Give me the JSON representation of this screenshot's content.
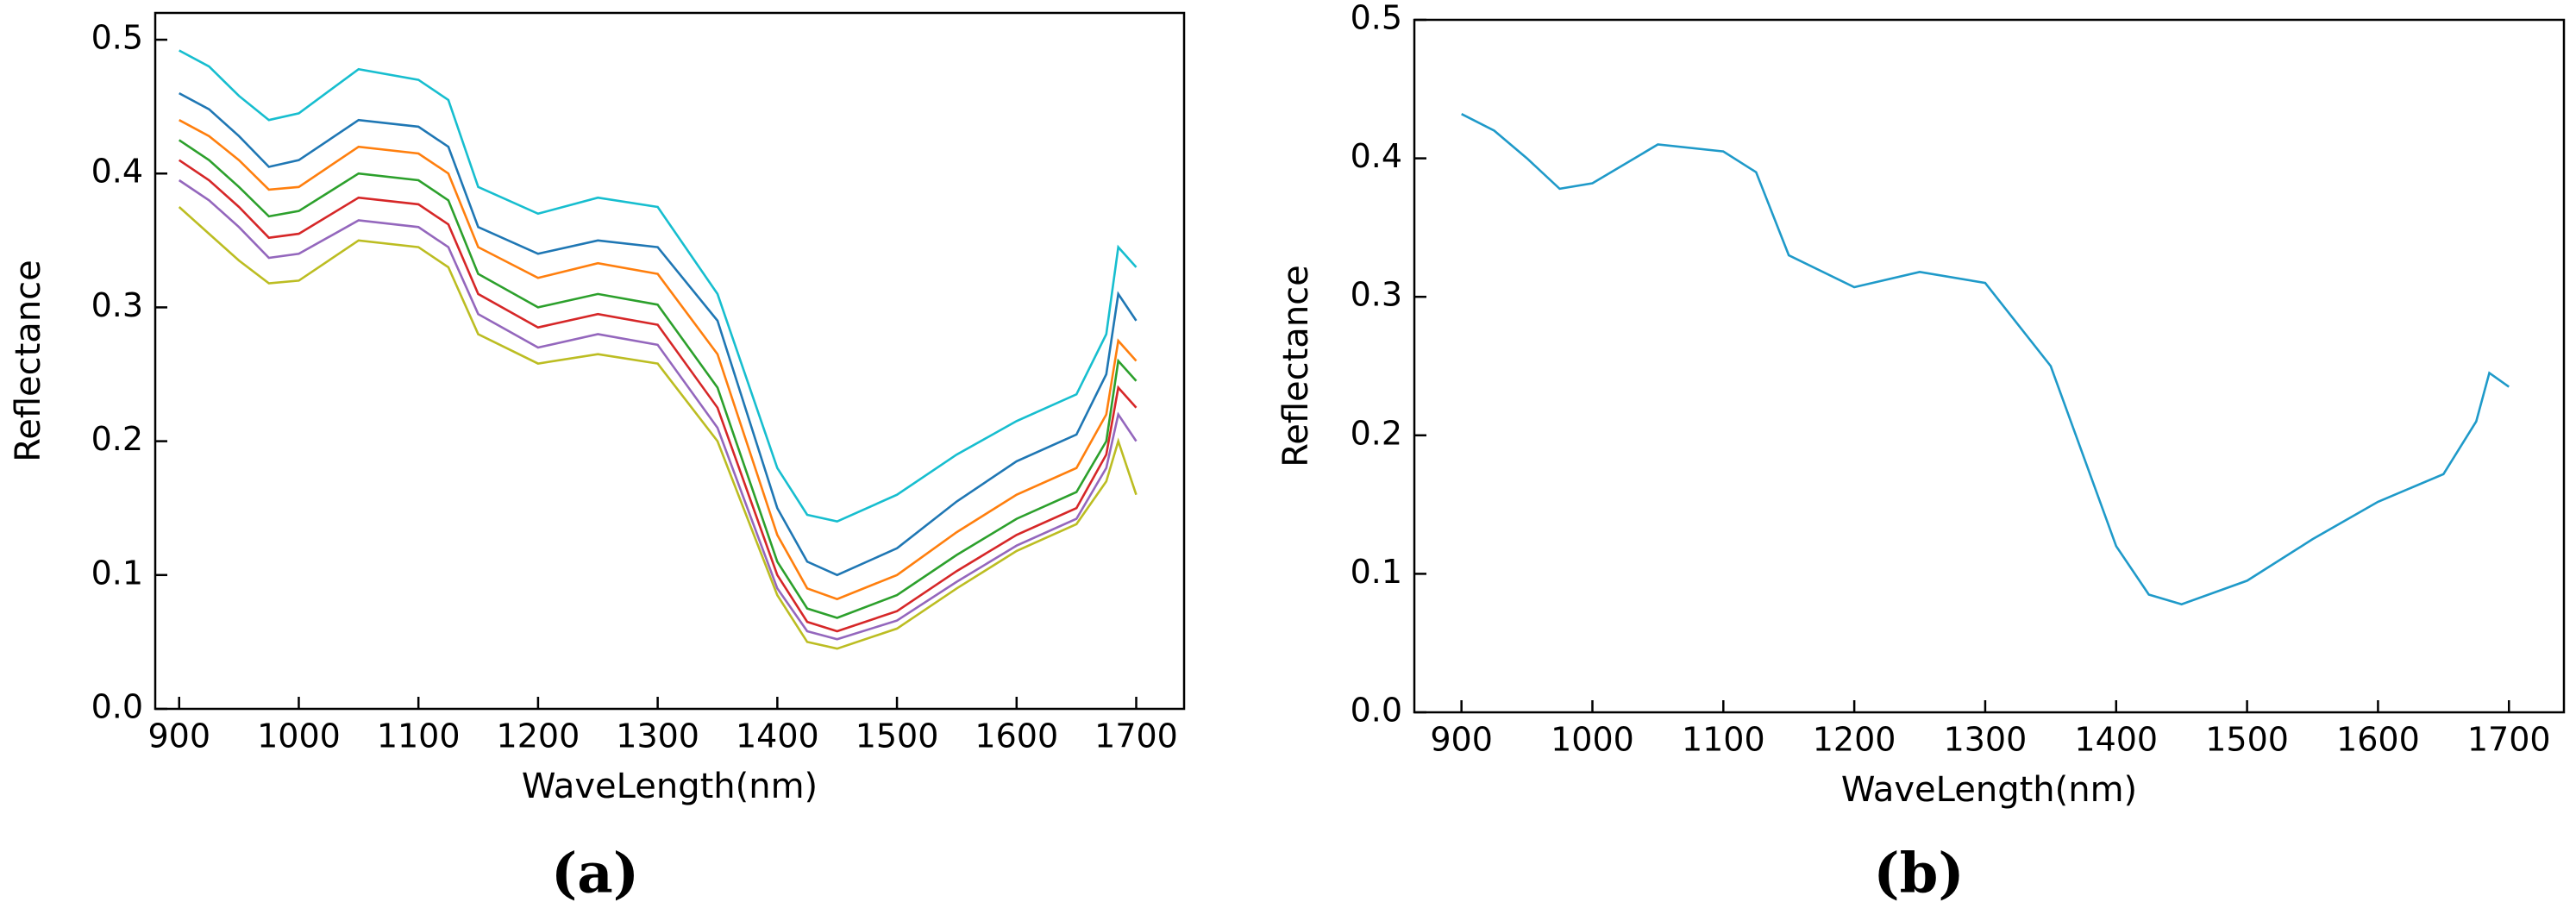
{
  "chart_data": [
    {
      "type": "line",
      "caption": "(a)",
      "xlabel": "WaveLength(nm)",
      "ylabel": "Reflectance",
      "x": [
        900,
        925,
        950,
        975,
        1000,
        1050,
        1100,
        1125,
        1150,
        1200,
        1250,
        1300,
        1350,
        1400,
        1425,
        1450,
        1500,
        1550,
        1600,
        1650,
        1675,
        1685,
        1700
      ],
      "xlim": [
        880,
        1740
      ],
      "ylim": [
        0,
        0.52
      ],
      "xticks": [
        900,
        1000,
        1100,
        1200,
        1300,
        1400,
        1500,
        1600,
        1700
      ],
      "yticks": [
        {
          "value": 0,
          "label": "0.0"
        },
        0.1,
        0.2,
        0.3,
        0.4,
        0.5
      ],
      "series": [
        {
          "color": "#17becf",
          "values": [
            0.492,
            0.48,
            0.458,
            0.44,
            0.445,
            0.478,
            0.47,
            0.455,
            0.39,
            0.37,
            0.382,
            0.375,
            0.31,
            0.18,
            0.145,
            0.14,
            0.16,
            0.19,
            0.215,
            0.235,
            0.28,
            0.345,
            0.33
          ]
        },
        {
          "color": "#1f77b4",
          "values": [
            0.46,
            0.448,
            0.428,
            0.405,
            0.41,
            0.44,
            0.435,
            0.42,
            0.36,
            0.34,
            0.35,
            0.345,
            0.29,
            0.15,
            0.11,
            0.1,
            0.12,
            0.155,
            0.185,
            0.205,
            0.25,
            0.31,
            0.29
          ]
        },
        {
          "color": "#ff7f0e",
          "values": [
            0.44,
            0.428,
            0.41,
            0.388,
            0.39,
            0.42,
            0.415,
            0.4,
            0.345,
            0.322,
            0.333,
            0.325,
            0.265,
            0.13,
            0.09,
            0.082,
            0.1,
            0.132,
            0.16,
            0.18,
            0.22,
            0.275,
            0.26
          ]
        },
        {
          "color": "#2ca02c",
          "values": [
            0.425,
            0.41,
            0.39,
            0.368,
            0.372,
            0.4,
            0.395,
            0.38,
            0.325,
            0.3,
            0.31,
            0.302,
            0.24,
            0.11,
            0.075,
            0.068,
            0.085,
            0.115,
            0.142,
            0.162,
            0.2,
            0.26,
            0.245
          ]
        },
        {
          "color": "#d62728",
          "values": [
            0.41,
            0.395,
            0.375,
            0.352,
            0.355,
            0.382,
            0.377,
            0.362,
            0.31,
            0.285,
            0.295,
            0.287,
            0.225,
            0.1,
            0.065,
            0.058,
            0.073,
            0.103,
            0.13,
            0.15,
            0.19,
            0.24,
            0.225
          ]
        },
        {
          "color": "#9467bd",
          "values": [
            0.395,
            0.38,
            0.36,
            0.337,
            0.34,
            0.365,
            0.36,
            0.345,
            0.295,
            0.27,
            0.28,
            0.272,
            0.21,
            0.09,
            0.058,
            0.052,
            0.066,
            0.095,
            0.122,
            0.142,
            0.18,
            0.22,
            0.2
          ]
        },
        {
          "color": "#bcbd22",
          "values": [
            0.375,
            0.355,
            0.335,
            0.318,
            0.32,
            0.35,
            0.345,
            0.33,
            0.28,
            0.258,
            0.265,
            0.258,
            0.2,
            0.085,
            0.05,
            0.045,
            0.06,
            0.09,
            0.118,
            0.138,
            0.17,
            0.2,
            0.16
          ]
        }
      ]
    },
    {
      "type": "line",
      "caption": "(b)",
      "xlabel": "WaveLength(nm)",
      "ylabel": "Reflectance",
      "x": [
        900,
        925,
        950,
        975,
        1000,
        1050,
        1100,
        1125,
        1150,
        1200,
        1250,
        1300,
        1350,
        1400,
        1425,
        1450,
        1500,
        1550,
        1600,
        1650,
        1675,
        1685,
        1700
      ],
      "xlim": [
        864,
        1742
      ],
      "ylim": [
        0,
        0.5
      ],
      "xticks": [
        900,
        1000,
        1100,
        1200,
        1300,
        1400,
        1500,
        1600,
        1700
      ],
      "yticks": [
        {
          "value": 0,
          "label": "0.0"
        },
        0.1,
        0.2,
        0.3,
        0.4,
        0.5
      ],
      "series": [
        {
          "color": "#1f9ac9",
          "values": [
            0.432,
            0.42,
            0.4,
            0.378,
            0.382,
            0.41,
            0.405,
            0.39,
            0.33,
            0.307,
            0.318,
            0.31,
            0.25,
            0.12,
            0.085,
            0.078,
            0.095,
            0.125,
            0.152,
            0.172,
            0.21,
            0.245,
            0.235
          ]
        }
      ]
    }
  ]
}
